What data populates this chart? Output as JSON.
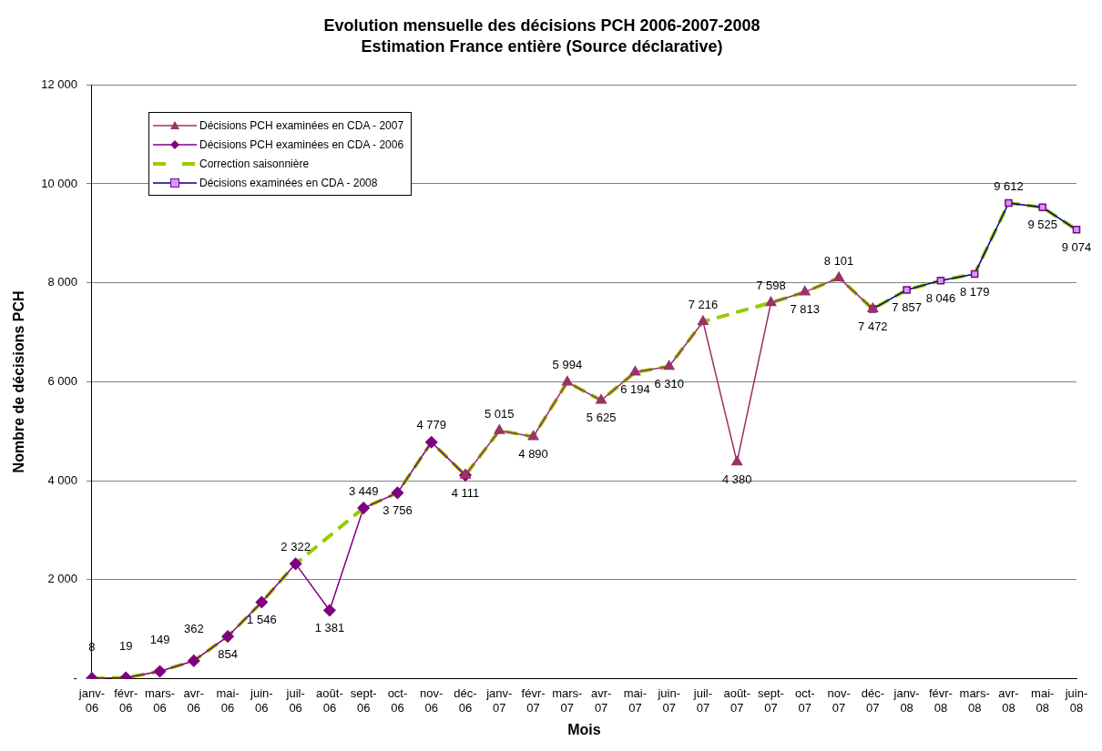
{
  "chart_data": {
    "type": "line",
    "title": "Evolution mensuelle des décisions PCH 2006-2007-2008",
    "subtitle": "Estimation France entière (Source déclarative)",
    "xlabel": "Mois",
    "ylabel": "Nombre de décisions PCH",
    "categories": [
      "janv-06",
      "févr-06",
      "mars-06",
      "avr-06",
      "mai-06",
      "juin-06",
      "juil-06",
      "août-06",
      "sept-06",
      "oct-06",
      "nov-06",
      "déc-06",
      "janv-07",
      "févr-07",
      "mars-07",
      "avr-07",
      "mai-07",
      "juin-07",
      "juil-07",
      "août-07",
      "sept-07",
      "oct-07",
      "nov-07",
      "déc-07",
      "janv-08",
      "févr-08",
      "mars-08",
      "avr-08",
      "mai-08",
      "juin-08"
    ],
    "series": [
      {
        "name": "Décisions PCH examinées en CDA - 2007",
        "color": "#993366",
        "marker": "triangle",
        "values": [
          null,
          null,
          null,
          null,
          null,
          null,
          null,
          null,
          null,
          null,
          null,
          4111,
          5015,
          4890,
          5994,
          5625,
          6194,
          6310,
          7216,
          4380,
          7598,
          7813,
          8101,
          7472,
          null,
          null,
          null,
          null,
          null,
          null
        ],
        "value_labels": [
          null,
          null,
          null,
          null,
          null,
          null,
          null,
          null,
          null,
          null,
          null,
          null,
          "5 015",
          "4 890",
          "5 994",
          "5 625",
          "6 194",
          "6 310",
          "7 216",
          "4 380",
          "7 598",
          "7 813",
          "8 101",
          "7 472",
          null,
          null,
          null,
          null,
          null,
          null
        ]
      },
      {
        "name": "Décisions PCH examinées en CDA - 2006",
        "color": "#800080",
        "marker": "diamond",
        "values": [
          8,
          19,
          149,
          362,
          854,
          1546,
          2322,
          1381,
          3449,
          3756,
          4779,
          4111,
          null,
          null,
          null,
          null,
          null,
          null,
          null,
          null,
          null,
          null,
          null,
          null,
          null,
          null,
          null,
          null,
          null,
          null
        ],
        "value_labels": [
          "8",
          "19",
          "149",
          "362",
          "854",
          "1 546",
          "2 322",
          "1 381",
          "3 449",
          "3 756",
          "4 779",
          "4 111",
          null,
          null,
          null,
          null,
          null,
          null,
          null,
          null,
          null,
          null,
          null,
          null,
          null,
          null,
          null,
          null,
          null,
          null
        ]
      },
      {
        "name": "Correction saisonnière",
        "color": "#99cc00",
        "marker": "none",
        "line_style": "dashed",
        "values": [
          8,
          19,
          149,
          362,
          854,
          1546,
          2322,
          null,
          3449,
          3756,
          4779,
          4111,
          5015,
          4890,
          5994,
          5625,
          6194,
          6310,
          7216,
          null,
          7598,
          7813,
          8101,
          7472,
          7857,
          8046,
          8179,
          9612,
          9525,
          9074
        ]
      },
      {
        "name": "Décisions examinées en CDA - 2008",
        "color": "#000080",
        "marker": "square",
        "values": [
          null,
          null,
          null,
          null,
          null,
          null,
          null,
          null,
          null,
          null,
          null,
          null,
          null,
          null,
          null,
          null,
          null,
          null,
          null,
          null,
          null,
          null,
          null,
          7472,
          7857,
          8046,
          8179,
          9612,
          9525,
          9074
        ],
        "value_labels": [
          null,
          null,
          null,
          null,
          null,
          null,
          null,
          null,
          null,
          null,
          null,
          null,
          null,
          null,
          null,
          null,
          null,
          null,
          null,
          null,
          null,
          null,
          null,
          null,
          "7 857",
          "8 046",
          "8 179",
          "9 612",
          "9 525",
          "9 074"
        ]
      }
    ],
    "ylim": [
      0,
      12000
    ],
    "yticks": [
      {
        "value": 0,
        "label": "-"
      },
      {
        "value": 2000,
        "label": "2 000"
      },
      {
        "value": 4000,
        "label": "4 000"
      },
      {
        "value": 6000,
        "label": "6 000"
      },
      {
        "value": 8000,
        "label": "8 000"
      },
      {
        "value": 10000,
        "label": "10 000"
      },
      {
        "value": 12000,
        "label": "12 000"
      }
    ],
    "grid": "y",
    "legend": "top left"
  }
}
